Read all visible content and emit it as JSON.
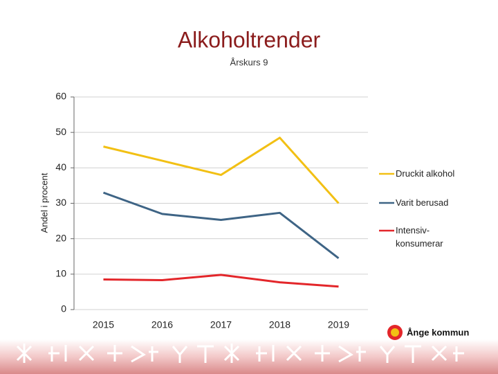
{
  "chart_data": {
    "type": "line",
    "title": "Alkoholtrender",
    "subtitle": "Årskurs 9",
    "y_label": "Andel i procent",
    "categories": [
      "2015",
      "2016",
      "2017",
      "2018",
      "2019"
    ],
    "series": [
      {
        "name": "Druckit alkohol",
        "color": "#f2c014",
        "values": [
          46,
          42,
          38,
          48.5,
          30
        ]
      },
      {
        "name": "Varit berusad",
        "color": "#3e6485",
        "values": [
          33,
          27,
          25.3,
          27.3,
          14.5
        ]
      },
      {
        "name": "Intensiv- konsumerar",
        "color": "#e3262a",
        "values": [
          8.5,
          8.3,
          9.8,
          7.7,
          6.5
        ]
      }
    ],
    "ylim": [
      0,
      60
    ],
    "yticks": [
      0,
      10,
      20,
      30,
      40,
      50,
      60
    ],
    "grid": true,
    "legend": "right"
  },
  "footer": {
    "logo": "Ånge kommun"
  }
}
